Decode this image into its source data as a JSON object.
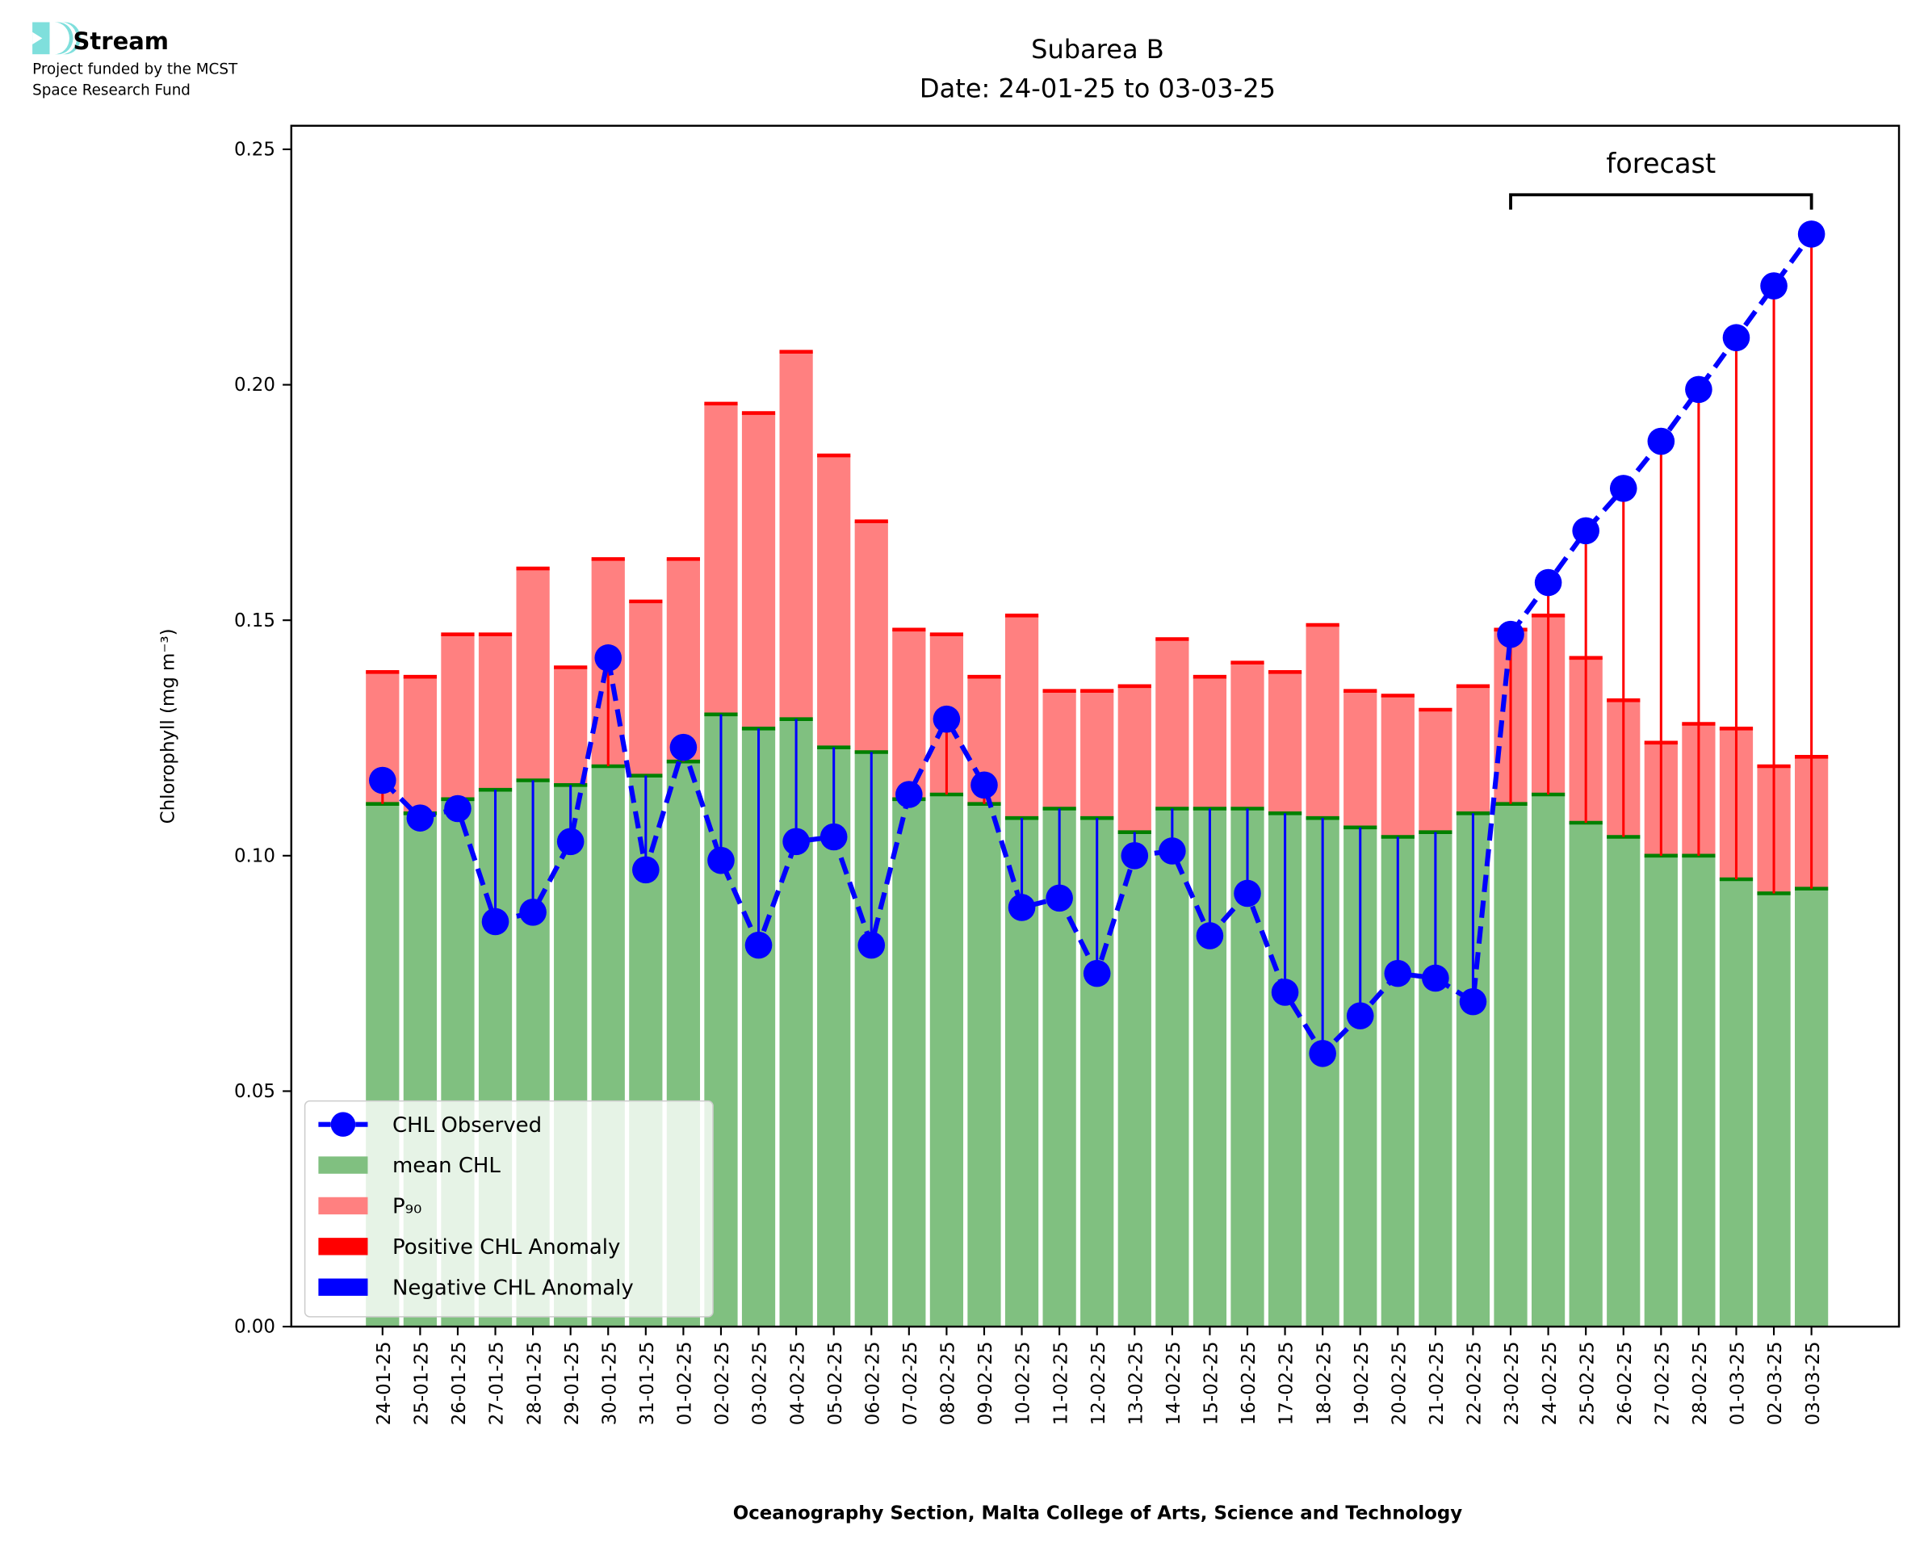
{
  "logo": {
    "name": "Stream",
    "line1": "Project funded by the MCST",
    "line2": "Space Research Fund"
  },
  "colors": {
    "observed": "#0000ff",
    "mean": "#80c080",
    "mean_edge": "#008000",
    "p90": "#ff8080",
    "p90_edge": "#ff0000",
    "positive": "#ff0000",
    "negative": "#0000ff",
    "logo": "#7fdfdc"
  },
  "chart_data": {
    "type": "bar",
    "title": "Subarea B",
    "subtitle": "Date: 24-01-25 to 03-03-25",
    "xlabel": "Oceanography Section, Malta College of Arts, Science and Technology",
    "ylabel": "Chlorophyll (mg m⁻³)",
    "ylim": [
      0,
      0.255
    ],
    "yticks": [
      "0.00",
      "0.05",
      "0.10",
      "0.15",
      "0.20",
      "0.25"
    ],
    "grid": false,
    "legend_placement": "lower-left",
    "annotation": "forecast",
    "forecast_range": [
      "23-02-25",
      "03-03-25"
    ],
    "categories": [
      "24-01-25",
      "25-01-25",
      "26-01-25",
      "27-01-25",
      "28-01-25",
      "29-01-25",
      "30-01-25",
      "31-01-25",
      "01-02-25",
      "02-02-25",
      "03-02-25",
      "04-02-25",
      "05-02-25",
      "06-02-25",
      "07-02-25",
      "08-02-25",
      "09-02-25",
      "10-02-25",
      "11-02-25",
      "12-02-25",
      "13-02-25",
      "14-02-25",
      "15-02-25",
      "16-02-25",
      "17-02-25",
      "18-02-25",
      "19-02-25",
      "20-02-25",
      "21-02-25",
      "22-02-25",
      "23-02-25",
      "24-02-25",
      "25-02-25",
      "26-02-25",
      "27-02-25",
      "28-02-25",
      "01-03-25",
      "02-03-25",
      "03-03-25"
    ],
    "series": [
      {
        "name": "CHL Observed",
        "type": "line",
        "values": [
          0.116,
          0.108,
          0.11,
          0.086,
          0.088,
          0.103,
          0.142,
          0.097,
          0.123,
          0.099,
          0.081,
          0.103,
          0.104,
          0.081,
          0.113,
          0.129,
          0.115,
          0.089,
          0.091,
          0.075,
          0.1,
          0.101,
          0.083,
          0.092,
          0.071,
          0.058,
          0.066,
          0.075,
          0.074,
          0.069,
          0.147,
          0.158,
          0.169,
          0.178,
          0.188,
          0.199,
          0.21,
          0.221,
          0.232
        ]
      },
      {
        "name": "mean CHL",
        "type": "bar",
        "values": [
          0.111,
          0.109,
          0.112,
          0.114,
          0.116,
          0.115,
          0.119,
          0.117,
          0.12,
          0.13,
          0.127,
          0.129,
          0.123,
          0.122,
          0.112,
          0.113,
          0.111,
          0.108,
          0.11,
          0.108,
          0.105,
          0.11,
          0.11,
          0.11,
          0.109,
          0.108,
          0.106,
          0.104,
          0.105,
          0.109,
          0.111,
          0.113,
          0.107,
          0.104,
          0.1,
          0.1,
          0.095,
          0.092,
          0.093
        ]
      },
      {
        "name": "P₉₀",
        "type": "bar",
        "values": [
          0.139,
          0.138,
          0.147,
          0.147,
          0.161,
          0.14,
          0.163,
          0.154,
          0.163,
          0.196,
          0.194,
          0.207,
          0.185,
          0.171,
          0.148,
          0.147,
          0.138,
          0.151,
          0.135,
          0.135,
          0.136,
          0.146,
          0.138,
          0.141,
          0.139,
          0.149,
          0.135,
          0.134,
          0.131,
          0.136,
          0.148,
          0.151,
          0.142,
          0.133,
          0.124,
          0.128,
          0.127,
          0.119,
          0.121
        ]
      }
    ],
    "legend": [
      "CHL Observed",
      "mean CHL",
      "P₉₀",
      "Positive CHL Anomaly",
      "Negative CHL Anomaly"
    ]
  }
}
